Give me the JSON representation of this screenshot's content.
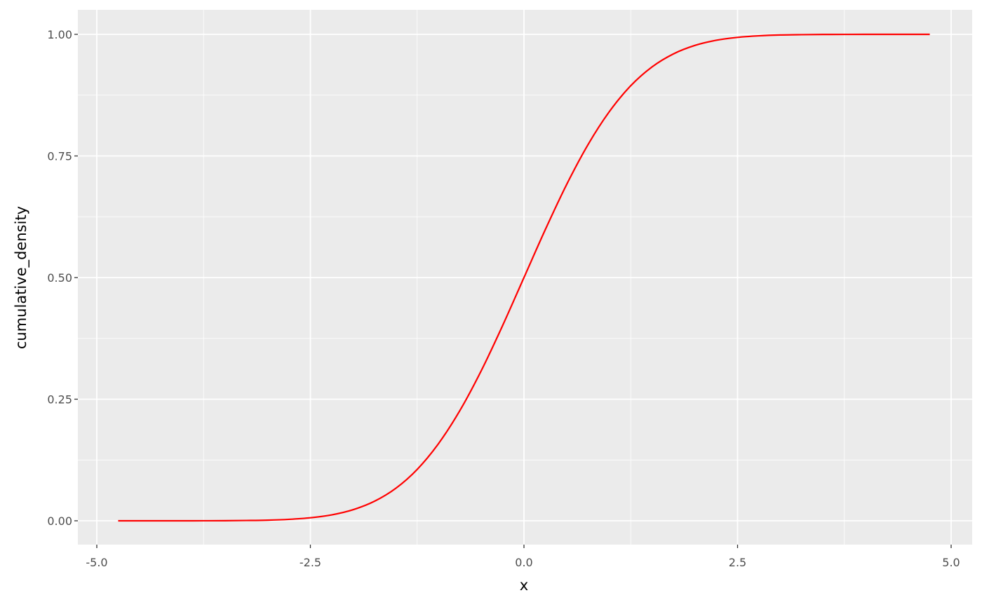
{
  "chart_data": {
    "type": "line",
    "title": "",
    "xlabel": "x",
    "ylabel": "cumulative_density",
    "xlim": [
      -5.2,
      5.2
    ],
    "ylim": [
      -0.05,
      1.05
    ],
    "grid": true,
    "x_ticks": [
      -5.0,
      -2.5,
      0.0,
      2.5,
      5.0
    ],
    "x_tick_labels": [
      "-5.0",
      "-2.5",
      "0.0",
      "2.5",
      "5.0"
    ],
    "y_ticks": [
      0,
      0.25,
      0.5,
      0.75,
      1.0
    ],
    "y_tick_labels": [
      "0.00",
      "0.25",
      "0.50",
      "0.75",
      "1.00"
    ],
    "colors": {
      "panel": "#EBEBEB",
      "grid": "#FFFFFF",
      "line": "#FF0000"
    },
    "series": [
      {
        "x": [
          -4.75,
          -4.5,
          -4.25,
          -4,
          -3.75,
          -3.5,
          -3.25,
          -3,
          -2.75,
          -2.5,
          -2.25,
          -2,
          -1.75,
          -1.5,
          -1.25,
          -1,
          -0.75,
          -0.5,
          -0.25,
          0,
          0.25,
          0.5,
          0.75,
          1,
          1.25,
          1.5,
          1.75,
          2,
          2.25,
          2.5,
          2.75,
          3,
          3.25,
          3.5,
          3.75,
          4,
          4.25,
          4.5,
          4.75
        ],
        "y": [
          0,
          0,
          0,
          0,
          0.0001,
          0.0002,
          0.0006,
          0.0013,
          0.003,
          0.0062,
          0.0122,
          0.0228,
          0.0401,
          0.0668,
          0.1056,
          0.1587,
          0.2266,
          0.3085,
          0.4013,
          0.5,
          0.5987,
          0.6915,
          0.7734,
          0.8413,
          0.8944,
          0.9332,
          0.9599,
          0.9772,
          0.9878,
          0.9938,
          0.997,
          0.9987,
          0.9994,
          0.9998,
          0.9999,
          1,
          1,
          1,
          1
        ]
      }
    ]
  }
}
